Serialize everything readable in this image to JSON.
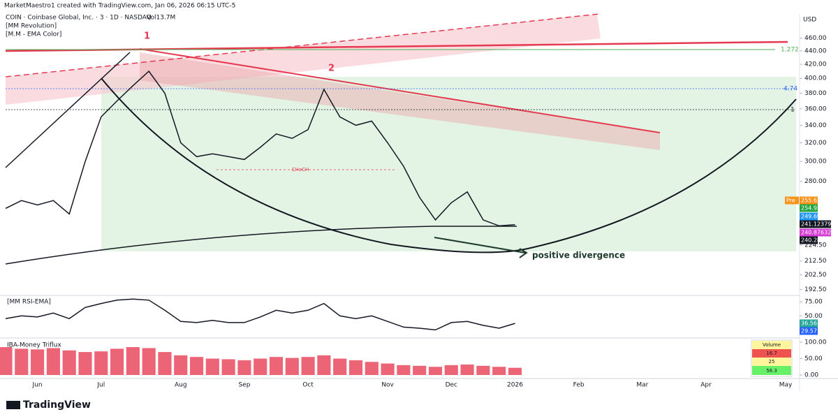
{
  "header": {
    "credit": "MarketMaestro1 created with TradingView.com, Jan 06, 2026 06:15 UTC-5",
    "symbol": "COIN · Coinbase Global, Inc. · 3 · 1D · NASDAQ",
    "volume": "Vol13.7M",
    "indicators": [
      "[MM Revolution]",
      "[M.M - EMA Color]"
    ],
    "currency": "USD"
  },
  "chart_data": [
    {
      "type": "line",
      "color": "#131722",
      "log": true,
      "grid": false,
      "categories": [
        null,
        null,
        "Jun",
        null,
        null,
        null,
        "Jul",
        null,
        null,
        null,
        null,
        "Aug",
        null,
        null,
        null,
        "Sep",
        null,
        null,
        null,
        "Oct",
        null,
        null,
        null,
        null,
        "Nov",
        null,
        null,
        null,
        "Dec",
        null,
        null,
        null,
        "2026",
        null,
        null,
        null,
        "Feb",
        null,
        null,
        null,
        "Mar",
        null,
        null,
        null,
        "Apr",
        null,
        null,
        null,
        null,
        "May"
      ],
      "values": [
        255,
        262,
        258,
        262,
        250,
        300,
        350,
        370,
        390,
        410,
        380,
        320,
        305,
        308,
        305,
        302,
        315,
        330,
        325,
        335,
        385,
        350,
        340,
        345,
        320,
        295,
        265,
        245,
        260,
        270,
        245,
        240,
        241,
        null,
        null,
        null,
        null,
        null,
        null,
        null,
        null,
        null,
        null,
        null,
        null,
        null,
        null,
        null,
        null,
        null
      ],
      "ylim": [
        190,
        500
      ],
      "yticks": [
        {
          "value": 192.5,
          "label": "192.50"
        },
        {
          "value": 202.5,
          "label": "202.50"
        },
        {
          "value": 212.5,
          "label": "212.50"
        },
        {
          "value": 224.5,
          "label": "224.50"
        },
        {
          "value": 280,
          "label": "280.00"
        },
        {
          "value": 300,
          "label": "300.00"
        },
        {
          "value": 320,
          "label": "320.00"
        },
        {
          "value": 340,
          "label": "340.00"
        },
        {
          "value": 360,
          "label": "360.00"
        },
        {
          "value": 380,
          "label": "380.00"
        },
        {
          "value": 400,
          "label": "400.00"
        },
        {
          "value": 420,
          "label": "420.00"
        },
        {
          "value": 440,
          "label": "440.00"
        },
        {
          "value": 460,
          "label": "460.00"
        }
      ],
      "annotations": [
        "1",
        "2",
        "CHoCH",
        "positive divergence",
        "1.272",
        "4.74",
        "1"
      ],
      "price_labels": [
        {
          "label": "Pre",
          "color": "#f7931a"
        },
        {
          "label": "255.63",
          "color": "#f7931a"
        },
        {
          "label": "254.92",
          "color": "#26a641"
        },
        {
          "label": "249.69",
          "color": "#2196f3"
        },
        {
          "label": "241.123791",
          "color": "#131722"
        },
        {
          "label": "240.876329",
          "color": "#d63bd6"
        },
        {
          "label": "240.28",
          "color": "#131722"
        }
      ]
    },
    {
      "type": "line",
      "title": "[MM RSI-EMA]",
      "color": "#131722",
      "values": [
        45,
        50,
        48,
        55,
        45,
        65,
        72,
        78,
        80,
        78,
        60,
        40,
        38,
        42,
        38,
        38,
        48,
        60,
        55,
        60,
        72,
        50,
        45,
        50,
        40,
        30,
        28,
        25,
        38,
        40,
        33,
        28,
        36.56
      ],
      "ylim": [
        13,
        84
      ],
      "yticks": [
        {
          "value": 75,
          "label": "75.00"
        },
        {
          "value": 50,
          "label": "50.00"
        }
      ],
      "price_labels": [
        {
          "label": "36.56",
          "color": "#26a69a"
        },
        {
          "label": "29.57",
          "color": "#2962ff"
        }
      ]
    },
    {
      "type": "bar",
      "title": "IBA-Money Triflux",
      "color": "#e84a5f",
      "values": [
        85,
        80,
        78,
        82,
        75,
        70,
        72,
        80,
        85,
        82,
        70,
        60,
        55,
        50,
        48,
        45,
        50,
        55,
        52,
        55,
        60,
        50,
        45,
        40,
        35,
        30,
        28,
        25,
        30,
        32,
        28,
        25,
        22
      ],
      "ylim": [
        0,
        100
      ],
      "yticks": [
        {
          "value": 100,
          "label": "100.00"
        },
        {
          "value": 50,
          "label": "50.00"
        },
        {
          "value": 0,
          "label": "0.00"
        }
      ],
      "volume_box": {
        "title": "Volume",
        "rows": [
          "16.7",
          "25",
          "58.3"
        ]
      }
    }
  ],
  "footer": {
    "brand": "TradingView"
  }
}
